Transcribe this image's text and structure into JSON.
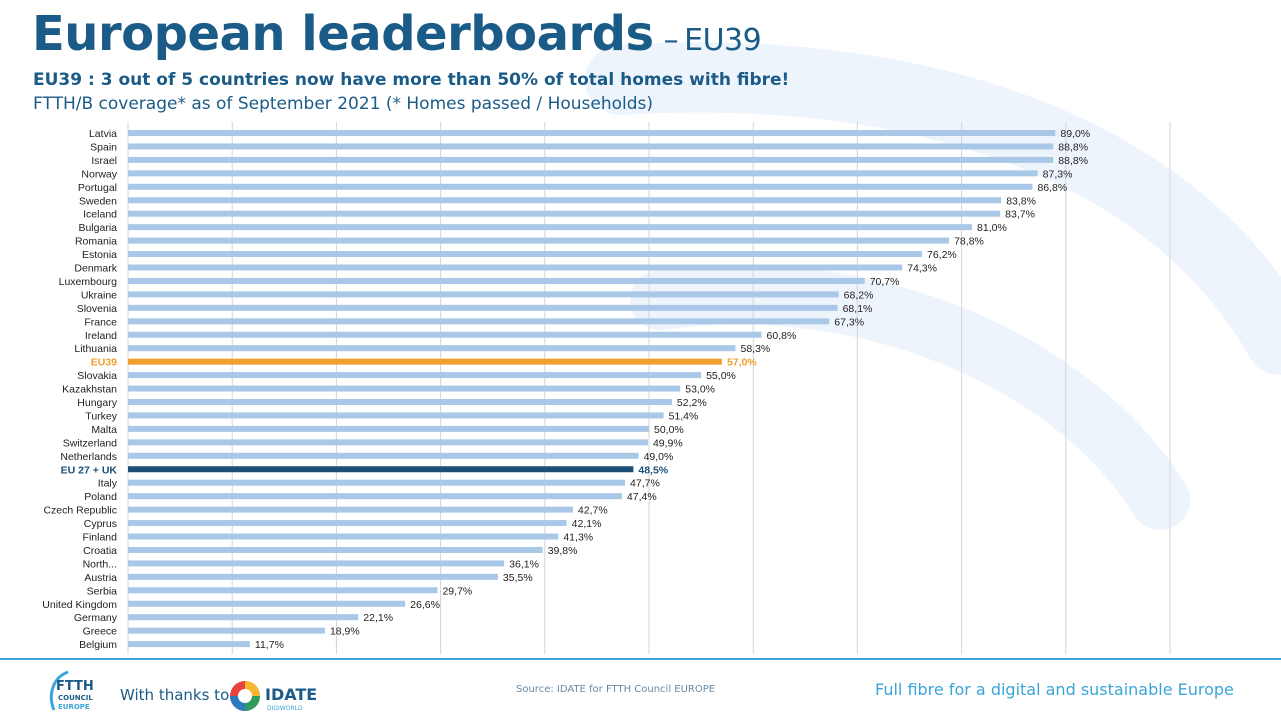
{
  "header": {
    "title": "European leaderboards",
    "title_dash": "–",
    "title_suffix": "EU39",
    "subtitle": "EU39 : 3 out of 5 countries now have more than 50% of total homes with fibre!",
    "subtitle2": "FTTH/B coverage* as of September 2021 (* Homes passed / Households)"
  },
  "chart_data": {
    "type": "bar",
    "orientation": "horizontal",
    "title": "FTTH/B coverage* as of September 2021",
    "xlim": [
      0,
      100
    ],
    "grid": true,
    "categories": [
      "Latvia",
      "Spain",
      "Israel",
      "Norway",
      "Portugal",
      "Sweden",
      "Iceland",
      "Bulgaria",
      "Romania",
      "Estonia",
      "Denmark",
      "Luxembourg",
      "Ukraine",
      "Slovenia",
      "France",
      "Ireland",
      "Lithuania",
      "EU39",
      "Slovakia",
      "Kazakhstan",
      "Hungary",
      "Turkey",
      "Malta",
      "Switzerland",
      "Netherlands",
      "EU 27 + UK",
      "Italy",
      "Poland",
      "Czech Republic",
      "Cyprus",
      "Finland",
      "Croatia",
      "North...",
      "Austria",
      "Serbia",
      "United Kingdom",
      "Germany",
      "Greece",
      "Belgium"
    ],
    "values": [
      89.0,
      88.8,
      88.8,
      87.3,
      86.8,
      83.8,
      83.7,
      81.0,
      78.8,
      76.2,
      74.3,
      70.7,
      68.2,
      68.1,
      67.3,
      60.8,
      58.3,
      57.0,
      55.0,
      53.0,
      52.2,
      51.4,
      50.0,
      49.9,
      49.0,
      48.5,
      47.7,
      47.4,
      42.7,
      42.1,
      41.3,
      39.8,
      36.1,
      35.5,
      29.7,
      26.6,
      22.1,
      18.9,
      11.7
    ],
    "value_labels": [
      "89,0%",
      "88,8%",
      "88,8%",
      "87,3%",
      "86,8%",
      "83,8%",
      "83,7%",
      "81,0%",
      "78,8%",
      "76,2%",
      "74,3%",
      "70,7%",
      "68,2%",
      "68,1%",
      "67,3%",
      "60,8%",
      "58,3%",
      "57,0%",
      "55,0%",
      "53,0%",
      "52,2%",
      "51,4%",
      "50,0%",
      "49,9%",
      "49,0%",
      "48,5%",
      "47,7%",
      "47,4%",
      "42,7%",
      "42,1%",
      "41,3%",
      "39,8%",
      "36,1%",
      "35,5%",
      "29,7%",
      "26,6%",
      "22,1%",
      "18,9%",
      "11,7%"
    ],
    "highlights": {
      "EU39": "#f0a030",
      "EU 27 + UK": "#1b4f78"
    },
    "colors": {
      "bar": "#a9c8e8",
      "grid": "#d4d4d4",
      "label": "#222222"
    }
  },
  "footer": {
    "logo_text": [
      "FTTH",
      "COUNCIL",
      "EUROPE"
    ],
    "thanks": "With thanks to",
    "partner_logo_text": "IDATE",
    "partner_logo_sub": "DIGIWORLD",
    "source": "Source: IDATE for FTTH Council EUROPE",
    "tagline": "Full fibre for a digital and sustainable Europe"
  }
}
